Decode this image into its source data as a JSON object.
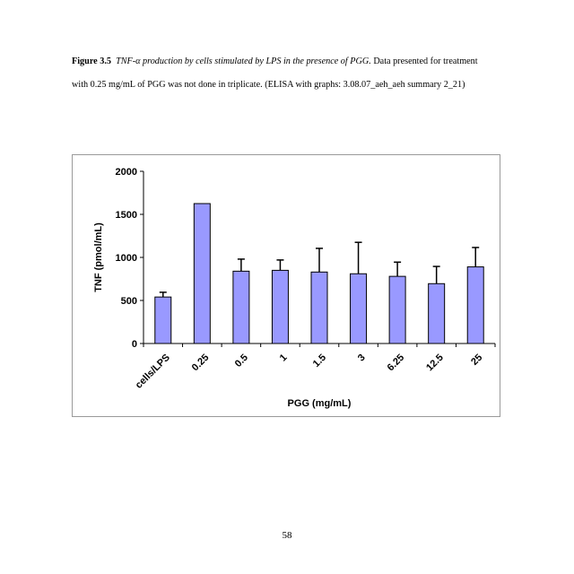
{
  "caption": {
    "label": "Figure 3.5",
    "title": "TNF-α production by cells stimulated by LPS in the presence of PGG.",
    "body": "Data presented for treatment with 0.25 mg/mL of PGG was not done in triplicate.  (ELISA with graphs: 3.08.07_aeh_aeh summary 2_21)"
  },
  "chart_data": {
    "type": "bar",
    "categories": [
      "cells/LPS",
      "0.25",
      "0.5",
      "1",
      "1.5",
      "3",
      "6.25",
      "12.5",
      "25"
    ],
    "values": [
      540,
      1625,
      840,
      850,
      830,
      810,
      780,
      695,
      890
    ],
    "errors": [
      55,
      0,
      140,
      120,
      275,
      365,
      165,
      200,
      225
    ],
    "xlabel": "PGG (mg/mL)",
    "ylabel": "TNF (pmol/mL)",
    "ylim": [
      0,
      2000
    ],
    "yticks": [
      0,
      500,
      1000,
      1500,
      2000
    ],
    "bar_color": "#9999ff",
    "grid": false,
    "legend": "none"
  },
  "page_number": "58"
}
